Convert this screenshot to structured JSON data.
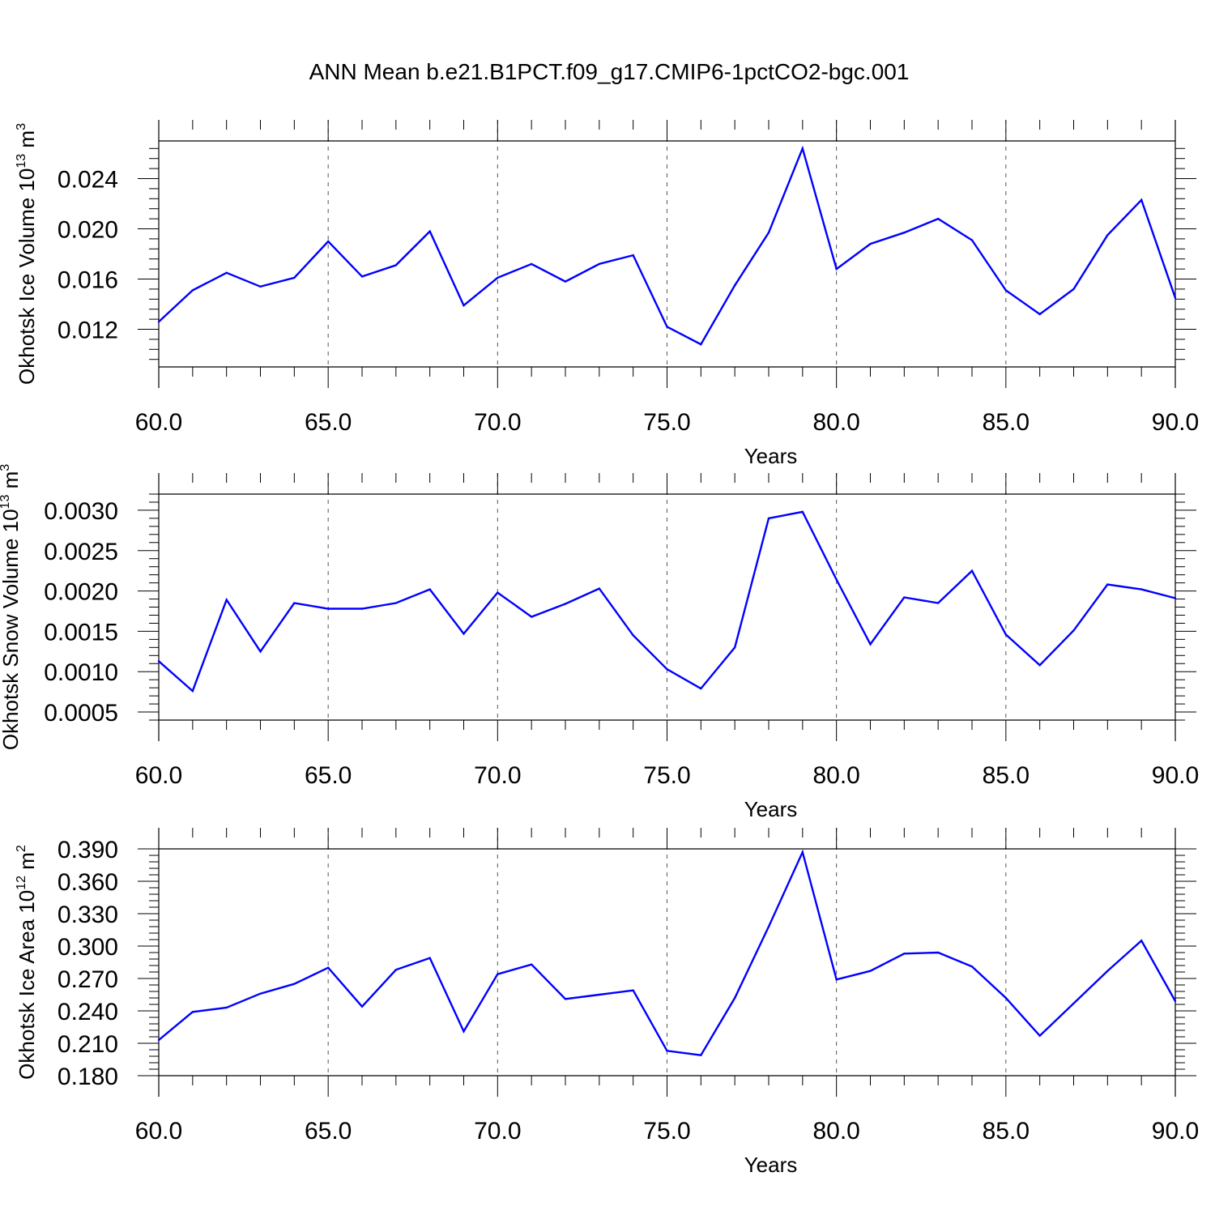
{
  "title": "ANN Mean b.e21.B1PCT.f09_g17.CMIP6-1pctCO2-bgc.001",
  "style": {
    "line_color": "#0000ff",
    "grid_color": "#555555",
    "axis_color": "#000000"
  },
  "chart_data": [
    {
      "type": "line",
      "ylabel": {
        "base": "Okhotsk Ice Volume 10",
        "exp": "13",
        "unit": " m",
        "unit_exp": "3"
      },
      "xlabel": "Years",
      "xlim": [
        60,
        90
      ],
      "ylim": [
        0.009,
        0.027
      ],
      "x_ticks": [
        60,
        65,
        70,
        75,
        80,
        85,
        90
      ],
      "x_tick_labels": [
        "60.0",
        "65.0",
        "70.0",
        "75.0",
        "80.0",
        "85.0",
        "90.0"
      ],
      "y_ticks": [
        0.012,
        0.016,
        0.02,
        0.024
      ],
      "y_tick_labels": [
        "0.012",
        "0.016",
        "0.020",
        "0.024"
      ],
      "grid": "vertical dashed at major x ticks",
      "x": [
        60,
        61,
        62,
        63,
        64,
        65,
        66,
        67,
        68,
        69,
        70,
        71,
        72,
        73,
        74,
        75,
        76,
        77,
        78,
        79,
        80,
        81,
        82,
        83,
        84,
        85,
        86,
        87,
        88,
        89,
        90
      ],
      "values": [
        0.0126,
        0.0151,
        0.0165,
        0.0154,
        0.0161,
        0.019,
        0.0162,
        0.0171,
        0.0198,
        0.0139,
        0.0161,
        0.0172,
        0.0158,
        0.0172,
        0.0179,
        0.0122,
        0.0108,
        0.0155,
        0.0197,
        0.0264,
        0.0168,
        0.0188,
        0.0197,
        0.0208,
        0.0191,
        0.0151,
        0.0132,
        0.0152,
        0.0195,
        0.0223,
        0.0145
      ]
    },
    {
      "type": "line",
      "ylabel": {
        "base": "Okhotsk Snow Volume 10",
        "exp": "13",
        "unit": " m",
        "unit_exp": "3"
      },
      "xlabel": "Years",
      "xlim": [
        60,
        90
      ],
      "ylim": [
        0.0004,
        0.0032
      ],
      "x_ticks": [
        60,
        65,
        70,
        75,
        80,
        85,
        90
      ],
      "x_tick_labels": [
        "60.0",
        "65.0",
        "70.0",
        "75.0",
        "80.0",
        "85.0",
        "90.0"
      ],
      "y_ticks": [
        0.0005,
        0.001,
        0.0015,
        0.002,
        0.0025,
        0.003
      ],
      "y_tick_labels": [
        "0.0005",
        "0.0010",
        "0.0015",
        "0.0020",
        "0.0025",
        "0.0030"
      ],
      "grid": "vertical dashed at major x ticks",
      "x": [
        60,
        61,
        62,
        63,
        64,
        65,
        66,
        67,
        68,
        69,
        70,
        71,
        72,
        73,
        74,
        75,
        76,
        77,
        78,
        79,
        80,
        81,
        82,
        83,
        84,
        85,
        86,
        87,
        88,
        89,
        90
      ],
      "values": [
        0.00113,
        0.00076,
        0.00189,
        0.00125,
        0.00185,
        0.00178,
        0.00178,
        0.00185,
        0.00202,
        0.00147,
        0.00198,
        0.00168,
        0.00184,
        0.00203,
        0.00145,
        0.00103,
        0.00079,
        0.0013,
        0.0029,
        0.00298,
        0.00214,
        0.00134,
        0.00192,
        0.00185,
        0.00225,
        0.00146,
        0.00108,
        0.00151,
        0.00208,
        0.00202,
        0.00191
      ]
    },
    {
      "type": "line",
      "ylabel": {
        "base": "Okhotsk Ice Area 10",
        "exp": "12",
        "unit": " m",
        "unit_exp": "2"
      },
      "xlabel": "Years",
      "xlim": [
        60,
        90
      ],
      "ylim": [
        0.18,
        0.39
      ],
      "x_ticks": [
        60,
        65,
        70,
        75,
        80,
        85,
        90
      ],
      "x_tick_labels": [
        "60.0",
        "65.0",
        "70.0",
        "75.0",
        "80.0",
        "85.0",
        "90.0"
      ],
      "y_ticks": [
        0.18,
        0.21,
        0.24,
        0.27,
        0.3,
        0.33,
        0.36,
        0.39
      ],
      "y_tick_labels": [
        "0.180",
        "0.210",
        "0.240",
        "0.270",
        "0.300",
        "0.330",
        "0.360",
        "0.390"
      ],
      "grid": "vertical dashed at major x ticks",
      "x": [
        60,
        61,
        62,
        63,
        64,
        65,
        66,
        67,
        68,
        69,
        70,
        71,
        72,
        73,
        74,
        75,
        76,
        77,
        78,
        79,
        80,
        81,
        82,
        83,
        84,
        85,
        86,
        87,
        88,
        89,
        90
      ],
      "values": [
        0.213,
        0.239,
        0.243,
        0.256,
        0.265,
        0.28,
        0.244,
        0.278,
        0.289,
        0.221,
        0.274,
        0.283,
        0.251,
        0.255,
        0.259,
        0.203,
        0.199,
        0.252,
        0.318,
        0.387,
        0.269,
        0.277,
        0.293,
        0.294,
        0.281,
        0.252,
        0.217,
        0.247,
        0.277,
        0.305,
        0.249
      ]
    }
  ]
}
